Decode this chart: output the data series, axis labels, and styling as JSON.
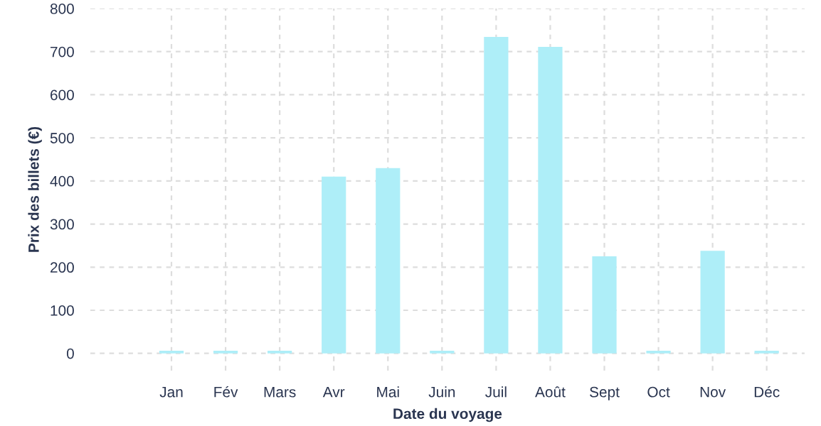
{
  "chart_data": {
    "type": "bar",
    "xlabel": "Date du voyage",
    "ylabel": "Prix des billets (€)",
    "categories": [
      "Jan",
      "Fév",
      "Mars",
      "Avr",
      "Mai",
      "Juin",
      "Juil",
      "Août",
      "Sept",
      "Oct",
      "Nov",
      "Déc"
    ],
    "values": [
      6,
      6,
      6,
      410,
      430,
      6,
      734,
      711,
      225,
      6,
      238,
      6
    ],
    "color": "#aeeef8",
    "ylim": [
      -40,
      800
    ],
    "yticks": [
      0,
      100,
      200,
      300,
      400,
      500,
      600,
      700,
      800
    ],
    "grid": true
  }
}
